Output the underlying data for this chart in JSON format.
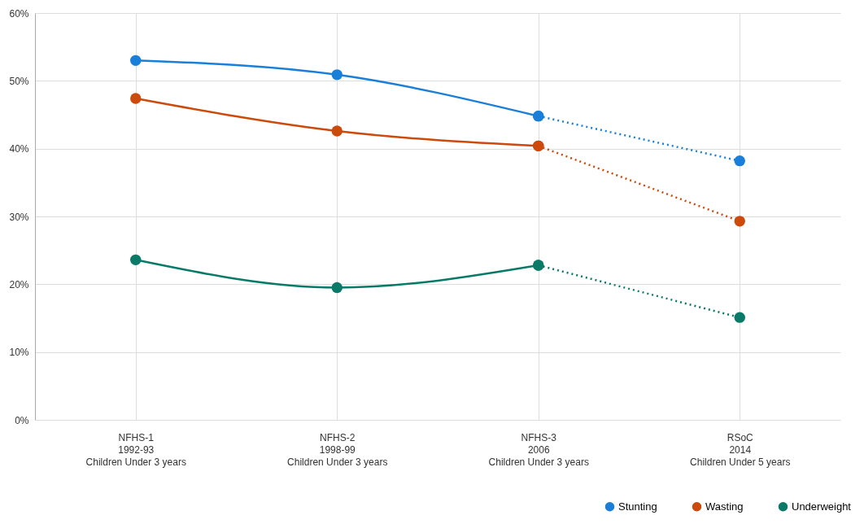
{
  "chart_data": {
    "type": "line",
    "categories": [
      "NFHS-1\n1992-93\nChildren Under 3 years",
      "NFHS-2\n1998-99\nChildren Under 3 years",
      "NFHS-3\n2006\nChildren Under 3 years",
      "RSoC\n2014\nChildren Under 5 years"
    ],
    "series": [
      {
        "name": "Stunting",
        "color": "#1a7fd8",
        "values": [
          53,
          50.9,
          44.8,
          null
        ],
        "marker": "circle",
        "line_style": "solid"
      },
      {
        "name": "Wasting",
        "color": "#cc4a0c",
        "values": [
          47.4,
          42.6,
          40.4,
          null
        ],
        "marker": "circle",
        "line_style": "solid"
      },
      {
        "name": "Underweight",
        "color": "#0a7a68",
        "values": [
          23.6,
          19.5,
          22.8,
          null
        ],
        "marker": "circle",
        "line_style": "solid"
      },
      {
        "color": "#1a7fd8",
        "values": [
          null,
          null,
          44.8,
          38.2
        ],
        "marker": "circle",
        "line_style": "dotted"
      },
      {
        "color": "#cc4a0c",
        "values": [
          null,
          null,
          40.4,
          29.3
        ],
        "marker": "circle",
        "line_style": "dotted"
      },
      {
        "color": "#0a7a68",
        "values": [
          null,
          null,
          22.8,
          15.1
        ],
        "marker": "circle",
        "line_style": "dotted"
      }
    ],
    "ylim": [
      0,
      60
    ],
    "yticks": [
      {
        "value": 0,
        "label": "0%"
      },
      {
        "value": 10,
        "label": "10%"
      },
      {
        "value": 20,
        "label": "20%"
      },
      {
        "value": 30,
        "label": "30%"
      },
      {
        "value": 40,
        "label": "40%"
      },
      {
        "value": 50,
        "label": "50%"
      },
      {
        "value": 60,
        "label": "60%"
      }
    ],
    "grid": true,
    "legend": "bottom right"
  }
}
